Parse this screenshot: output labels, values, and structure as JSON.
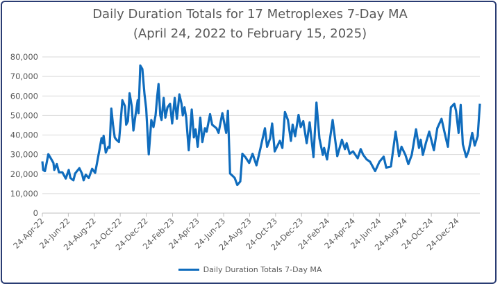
{
  "chart_data": {
    "type": "line",
    "title": "Daily Duration Totals for 17 Metroplexes 7-Day MA",
    "subtitle": "(April 24, 2022 to February 15, 2025)",
    "xlabel": "",
    "ylabel": "",
    "ylim": [
      0,
      80000
    ],
    "y_ticks": [
      "0",
      "10,000",
      "20,000",
      "30,000",
      "40,000",
      "50,000",
      "60,000",
      "70,000",
      "80,000"
    ],
    "x_range": [
      "2022-04-24",
      "2025-02-15"
    ],
    "x_ticks": [
      "24-Apr-22",
      "24-Jun-22",
      "24-Aug-22",
      "24-Oct-22",
      "24-Dec-22",
      "24-Feb-23",
      "24-Apr-23",
      "24-Jun-23",
      "24-Aug-23",
      "24-Oct-23",
      "24-Dec-23",
      "24-Feb-24",
      "24-Apr-24",
      "24-Jun-24",
      "24-Aug-24",
      "24-Oct-24",
      "24-Dec-24"
    ],
    "x_tick_dates": [
      "2022-04-24",
      "2022-06-24",
      "2022-08-24",
      "2022-10-24",
      "2022-12-24",
      "2023-02-24",
      "2023-04-24",
      "2023-06-24",
      "2023-08-24",
      "2023-10-24",
      "2023-12-24",
      "2024-02-24",
      "2024-04-24",
      "2024-06-24",
      "2024-08-24",
      "2024-10-24",
      "2024-12-24"
    ],
    "grid": true,
    "legend_position": "bottom",
    "color": "#0f6cbd",
    "series": [
      {
        "name": "Daily Duration Totals 7-Day MA",
        "x": [
          "2022-04-24",
          "2022-04-26",
          "2022-04-30",
          "2022-05-03",
          "2022-05-08",
          "2022-05-14",
          "2022-05-20",
          "2022-05-22",
          "2022-05-28",
          "2022-06-02",
          "2022-06-10",
          "2022-06-18",
          "2022-06-25",
          "2022-06-29",
          "2022-07-06",
          "2022-07-10",
          "2022-07-20",
          "2022-07-26",
          "2022-07-30",
          "2022-08-04",
          "2022-08-11",
          "2022-08-19",
          "2022-08-26",
          "2022-08-30",
          "2022-09-05",
          "2022-09-10",
          "2022-09-13",
          "2022-09-15",
          "2022-09-20",
          "2022-09-26",
          "2022-09-29",
          "2022-10-03",
          "2022-10-07",
          "2022-10-11",
          "2022-10-15",
          "2022-10-21",
          "2022-10-25",
          "2022-10-29",
          "2022-11-04",
          "2022-11-07",
          "2022-11-11",
          "2022-11-15",
          "2022-11-20",
          "2022-11-24",
          "2022-11-28",
          "2022-12-04",
          "2022-12-06",
          "2022-12-10",
          "2022-12-15",
          "2022-12-20",
          "2022-12-24",
          "2022-12-30",
          "2023-01-03",
          "2023-01-05",
          "2023-01-10",
          "2023-01-15",
          "2023-01-19",
          "2023-01-22",
          "2023-01-26",
          "2023-01-29",
          "2023-02-03",
          "2023-02-07",
          "2023-02-12",
          "2023-02-18",
          "2023-02-23",
          "2023-03-01",
          "2023-03-06",
          "2023-03-12",
          "2023-03-17",
          "2023-03-20",
          "2023-03-24",
          "2023-03-28",
          "2023-04-03",
          "2023-04-10",
          "2023-04-15",
          "2023-04-19",
          "2023-04-24",
          "2023-04-30",
          "2023-05-05",
          "2023-05-11",
          "2023-05-15",
          "2023-05-23",
          "2023-05-28",
          "2023-06-07",
          "2023-06-12",
          "2023-06-21",
          "2023-06-30",
          "2023-07-04",
          "2023-07-09",
          "2023-07-15",
          "2023-07-20",
          "2023-07-26",
          "2023-08-02",
          "2023-08-07",
          "2023-08-14",
          "2023-08-23",
          "2023-08-31",
          "2023-09-09",
          "2023-09-18",
          "2023-09-29",
          "2023-10-04",
          "2023-10-11",
          "2023-10-16",
          "2023-10-22",
          "2023-11-03",
          "2023-11-09",
          "2023-11-15",
          "2023-11-22",
          "2023-11-29",
          "2023-12-03",
          "2023-12-09",
          "2023-12-17",
          "2023-12-22",
          "2023-12-28",
          "2024-01-05",
          "2024-01-12",
          "2024-01-21",
          "2024-01-28",
          "2024-02-04",
          "2024-02-12",
          "2024-02-15",
          "2024-02-22",
          "2024-03-06",
          "2024-03-17",
          "2024-03-28",
          "2024-04-04",
          "2024-04-08",
          "2024-04-15",
          "2024-04-23",
          "2024-05-04",
          "2024-05-11",
          "2024-05-17",
          "2024-05-25",
          "2024-06-02",
          "2024-06-14",
          "2024-06-24",
          "2024-07-04",
          "2024-07-10",
          "2024-07-21",
          "2024-08-01",
          "2024-08-09",
          "2024-08-15",
          "2024-08-24",
          "2024-08-31",
          "2024-09-08",
          "2024-09-18",
          "2024-09-25",
          "2024-09-29",
          "2024-10-04",
          "2024-10-11",
          "2024-10-19",
          "2024-10-30",
          "2024-11-07",
          "2024-11-17",
          "2024-11-26",
          "2024-12-02",
          "2024-12-09",
          "2024-12-17",
          "2024-12-21",
          "2024-12-27",
          "2025-01-01",
          "2025-01-06",
          "2025-01-14",
          "2025-01-20",
          "2025-01-28",
          "2025-02-03",
          "2025-02-10",
          "2025-02-15"
        ],
        "values": [
          26500,
          22100,
          21500,
          24500,
          30200,
          28000,
          25700,
          22100,
          25100,
          20900,
          20900,
          17700,
          22100,
          18000,
          16800,
          20300,
          23000,
          20300,
          16800,
          19700,
          18000,
          22700,
          20600,
          25100,
          32200,
          38400,
          35800,
          39600,
          31000,
          34000,
          33400,
          53600,
          45300,
          38800,
          37600,
          36400,
          47100,
          57800,
          54800,
          45300,
          47100,
          61400,
          54800,
          42300,
          48900,
          57800,
          51200,
          75600,
          73800,
          60800,
          53600,
          30100,
          41700,
          47700,
          44100,
          50100,
          60200,
          66100,
          50100,
          47700,
          59000,
          48900,
          54200,
          56000,
          45900,
          59000,
          48300,
          60800,
          56000,
          50100,
          54200,
          48900,
          32200,
          53000,
          38800,
          42900,
          34000,
          48900,
          36400,
          43500,
          41700,
          50700,
          45300,
          43500,
          41100,
          51200,
          41100,
          52400,
          20300,
          19100,
          18000,
          14400,
          16200,
          30400,
          28700,
          25700,
          30400,
          24500,
          32800,
          43500,
          34000,
          38200,
          45900,
          31600,
          37000,
          33400,
          51800,
          47700,
          37000,
          45300,
          39400,
          50300,
          44100,
          47100,
          35800,
          46500,
          28700,
          56600,
          38200,
          29800,
          33400,
          27500,
          47700,
          29200,
          37600,
          32800,
          35800,
          30400,
          31600,
          28100,
          32800,
          29800,
          27500,
          26300,
          21500,
          26300,
          28900,
          23300,
          23900,
          41700,
          29200,
          34000,
          29800,
          25100,
          29800,
          42900,
          33400,
          37600,
          29800,
          35800,
          41700,
          32200,
          43500,
          48300,
          39400,
          34000,
          54200,
          56000,
          52400,
          41100,
          55400,
          35200,
          28700,
          32200,
          41100,
          34600,
          39400,
          56000
        ]
      }
    ]
  }
}
